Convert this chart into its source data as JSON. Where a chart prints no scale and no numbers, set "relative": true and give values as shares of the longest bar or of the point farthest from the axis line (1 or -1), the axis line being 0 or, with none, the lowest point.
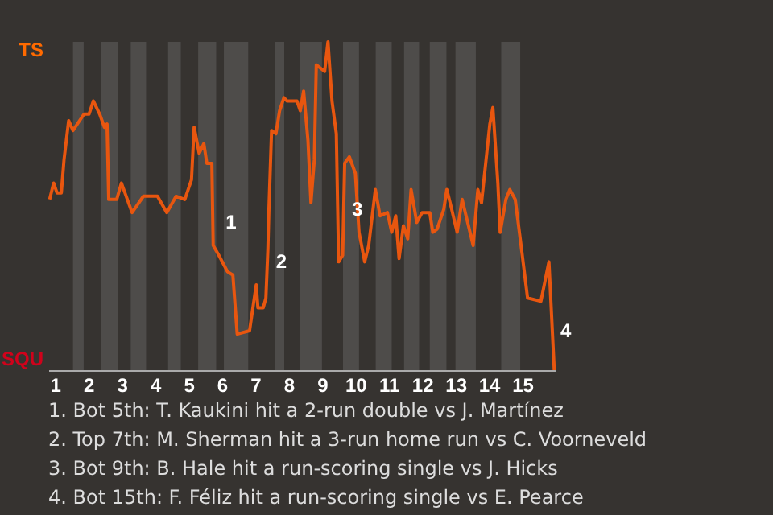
{
  "chart_data": {
    "type": "line",
    "relative": true,
    "x": [
      0.84,
      0.96,
      1.06,
      1.19,
      1.27,
      1.41,
      1.54,
      1.87,
      2.02,
      2.15,
      2.34,
      2.48,
      2.56,
      2.61,
      2.85,
      2.99,
      3.31,
      3.65,
      4.07,
      4.35,
      4.63,
      4.89,
      5.09,
      5.17,
      5.32,
      5.46,
      5.55,
      5.7,
      5.74,
      5.91,
      6.17,
      6.33,
      6.46,
      6.83,
      7.03,
      7.08,
      7.24,
      7.32,
      7.38,
      7.41,
      7.49,
      7.62,
      7.73,
      7.86,
      7.95,
      8.25,
      8.35,
      8.45,
      8.58,
      8.67,
      8.77,
      8.83,
      9.08,
      9.18,
      9.3,
      9.43,
      9.5,
      9.62,
      9.68,
      9.82,
      10.0,
      10.11,
      10.28,
      10.4,
      10.6,
      10.74,
      10.96,
      11.09,
      11.21,
      11.31,
      11.44,
      11.57,
      11.67,
      11.84,
      12.0,
      12.23,
      12.32,
      12.45,
      12.65,
      12.74,
      12.84,
      13.05,
      13.2,
      13.53,
      13.67,
      13.78,
      14.03,
      14.12,
      14.27,
      14.34,
      14.51,
      14.63,
      14.79,
      14.94,
      15.16,
      15.56,
      15.8,
      15.96
    ],
    "series": [
      {
        "color": "#e8560f",
        "values": [
          0.52,
          0.57,
          0.54,
          0.54,
          0.64,
          0.76,
          0.73,
          0.78,
          0.78,
          0.82,
          0.78,
          0.74,
          0.75,
          0.52,
          0.52,
          0.57,
          0.48,
          0.53,
          0.53,
          0.48,
          0.53,
          0.52,
          0.58,
          0.74,
          0.66,
          0.69,
          0.63,
          0.63,
          0.38,
          0.35,
          0.3,
          0.29,
          0.11,
          0.12,
          0.26,
          0.19,
          0.19,
          0.22,
          0.37,
          0.49,
          0.73,
          0.72,
          0.79,
          0.83,
          0.82,
          0.82,
          0.79,
          0.85,
          0.7,
          0.51,
          0.64,
          0.93,
          0.91,
          1,
          0.82,
          0.72,
          0.33,
          0.35,
          0.63,
          0.65,
          0.6,
          0.42,
          0.33,
          0.38,
          0.55,
          0.47,
          0.48,
          0.42,
          0.47,
          0.34,
          0.44,
          0.4,
          0.55,
          0.45,
          0.48,
          0.48,
          0.42,
          0.43,
          0.49,
          0.55,
          0.51,
          0.42,
          0.52,
          0.38,
          0.55,
          0.51,
          0.75,
          0.8,
          0.57,
          0.42,
          0.52,
          0.55,
          0.52,
          0.4,
          0.22,
          0.21,
          0.33,
          0
        ]
      }
    ],
    "xlim": [
      0.8,
      16
    ],
    "xticks": [
      1,
      2,
      3,
      4,
      5,
      6,
      7,
      8,
      9,
      10,
      11,
      12,
      13,
      14,
      15
    ],
    "bands": [
      {
        "axis": "x",
        "from": 1.54,
        "to": 1.86,
        "color": "#4e4c4a"
      },
      {
        "axis": "x",
        "from": 2.38,
        "to": 2.89,
        "color": "#4e4c4a"
      },
      {
        "axis": "x",
        "from": 3.27,
        "to": 3.73,
        "color": "#4e4c4a"
      },
      {
        "axis": "x",
        "from": 4.39,
        "to": 4.77,
        "color": "#4e4c4a"
      },
      {
        "axis": "x",
        "from": 5.29,
        "to": 5.83,
        "color": "#4e4c4a"
      },
      {
        "axis": "x",
        "from": 6.06,
        "to": 6.79,
        "color": "#4e4c4a"
      },
      {
        "axis": "x",
        "from": 7.58,
        "to": 7.87,
        "color": "#4e4c4a"
      },
      {
        "axis": "x",
        "from": 8.35,
        "to": 9.0,
        "color": "#4e4c4a"
      },
      {
        "axis": "x",
        "from": 9.63,
        "to": 10.11,
        "color": "#4e4c4a"
      },
      {
        "axis": "x",
        "from": 10.61,
        "to": 11.09,
        "color": "#4e4c4a"
      },
      {
        "axis": "x",
        "from": 11.46,
        "to": 11.91,
        "color": "#4e4c4a"
      },
      {
        "axis": "x",
        "from": 12.23,
        "to": 12.73,
        "color": "#4e4c4a"
      },
      {
        "axis": "x",
        "from": 13.0,
        "to": 13.61,
        "color": "#4e4c4a"
      },
      {
        "axis": "x",
        "from": 14.37,
        "to": 14.94,
        "color": "#4e4c4a"
      }
    ],
    "annotations": [
      {
        "text": "1",
        "x": 5.97,
        "y": 0.45
      },
      {
        "text": "2",
        "x": 7.48,
        "y": 0.33
      },
      {
        "text": "3",
        "x": 9.75,
        "y": 0.49
      },
      {
        "text": "4",
        "x": 16,
        "y": 0.12
      },
      "TS",
      "SQU",
      "1. Bot 5th: T. Kaukini hit a 2-run double vs J. Martínez",
      "2. Top 7th: M. Sherman hit a 3-run home run vs C. Voorneveld",
      "3. Bot 9th: B. Hale hit a run-scoring single vs J. Hicks",
      "4. Bot 15th: F. Féliz hit a run-scoring single vs E. Pearce"
    ]
  }
}
